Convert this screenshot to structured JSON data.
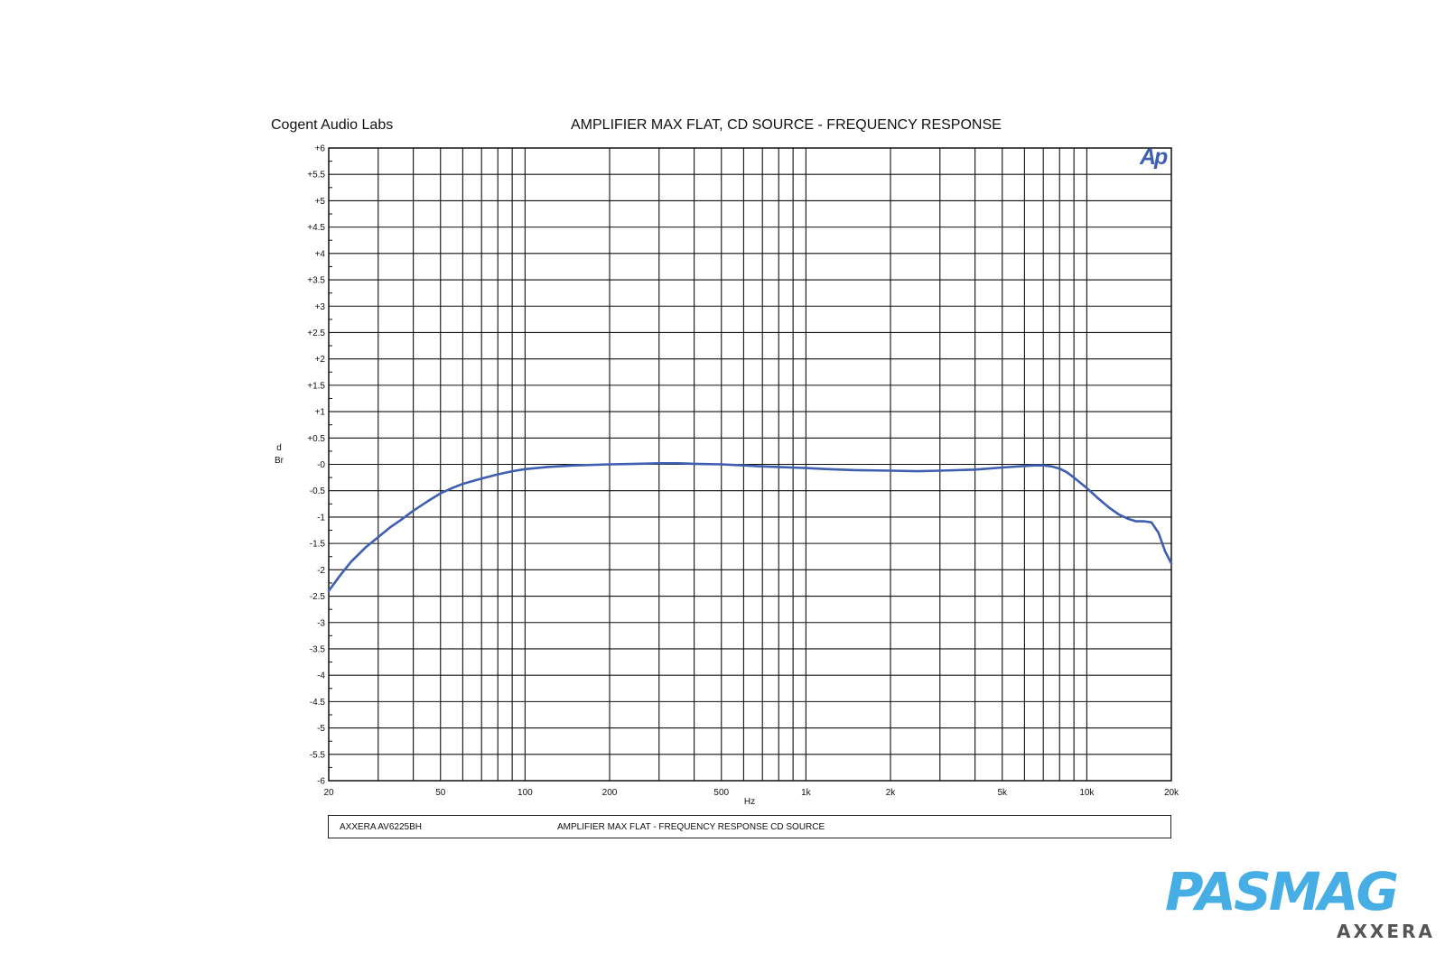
{
  "header": {
    "brand": "Cogent Audio Labs",
    "logo_text": "Ap"
  },
  "footer": {
    "left_text": "AXXERA  AV6225BH",
    "mid_text": "AMPLIFIER MAX FLAT  -  FREQUENCY RESPONSE     CD SOURCE"
  },
  "watermark": {
    "title": "PASMAG",
    "subtitle": "AXXERA"
  },
  "colors": {
    "trace": "#3f5fb0",
    "grid": "#111111",
    "watermark": "#46aee4"
  },
  "chart_data": {
    "type": "line",
    "title": "AMPLIFIER MAX FLAT, CD SOURCE  -  FREQUENCY RESPONSE",
    "xlabel": "Hz",
    "ylabel": "dBr",
    "x_scale": "log",
    "xlim": [
      20,
      20000
    ],
    "ylim": [
      -6,
      6
    ],
    "grid": true,
    "x_ticks": [
      {
        "value": 20,
        "label": "20"
      },
      {
        "value": 50,
        "label": "50"
      },
      {
        "value": 100,
        "label": "100"
      },
      {
        "value": 200,
        "label": "200"
      },
      {
        "value": 500,
        "label": "500"
      },
      {
        "value": 1000,
        "label": "1k"
      },
      {
        "value": 2000,
        "label": "2k"
      },
      {
        "value": 5000,
        "label": "5k"
      },
      {
        "value": 10000,
        "label": "10k"
      },
      {
        "value": 20000,
        "label": "20k"
      }
    ],
    "x_gridlines": [
      30,
      40,
      50,
      60,
      70,
      80,
      90,
      100,
      200,
      300,
      400,
      500,
      600,
      700,
      800,
      900,
      1000,
      2000,
      3000,
      4000,
      5000,
      6000,
      7000,
      8000,
      9000,
      10000
    ],
    "y_ticks": [
      {
        "value": 6,
        "label": "+6"
      },
      {
        "value": 5.5,
        "label": "+5.5"
      },
      {
        "value": 5,
        "label": "+5"
      },
      {
        "value": 4.5,
        "label": "+4.5"
      },
      {
        "value": 4,
        "label": "+4"
      },
      {
        "value": 3.5,
        "label": "+3.5"
      },
      {
        "value": 3,
        "label": "+3"
      },
      {
        "value": 2.5,
        "label": "+2.5"
      },
      {
        "value": 2,
        "label": "+2"
      },
      {
        "value": 1.5,
        "label": "+1.5"
      },
      {
        "value": 1,
        "label": "+1"
      },
      {
        "value": 0.5,
        "label": "+0.5"
      },
      {
        "value": 0,
        "label": "-0"
      },
      {
        "value": -0.5,
        "label": "-0.5"
      },
      {
        "value": -1,
        "label": "-1"
      },
      {
        "value": -1.5,
        "label": "-1.5"
      },
      {
        "value": -2,
        "label": "-2"
      },
      {
        "value": -2.5,
        "label": "-2.5"
      },
      {
        "value": -3,
        "label": "-3"
      },
      {
        "value": -3.5,
        "label": "-3.5"
      },
      {
        "value": -4,
        "label": "-4"
      },
      {
        "value": -4.5,
        "label": "-4.5"
      },
      {
        "value": -5,
        "label": "-5"
      },
      {
        "value": -5.5,
        "label": "-5.5"
      },
      {
        "value": -6,
        "label": "-6"
      }
    ],
    "series": [
      {
        "x": [
          20,
          22,
          24,
          27,
          30,
          33,
          36,
          40,
          45,
          50,
          55,
          60,
          70,
          80,
          90,
          100,
          120,
          150,
          200,
          250,
          300,
          350,
          400,
          500,
          600,
          700,
          800,
          1000,
          1200,
          1500,
          2000,
          2500,
          3000,
          4000,
          5000,
          6000,
          6500,
          7000,
          7500,
          8000,
          8500,
          9000,
          10000,
          11000,
          12000,
          13000,
          14000,
          15000,
          16000,
          17000,
          18000,
          19000,
          20000
        ],
        "y": [
          -2.4,
          -2.1,
          -1.85,
          -1.58,
          -1.38,
          -1.2,
          -1.06,
          -0.88,
          -0.7,
          -0.55,
          -0.45,
          -0.37,
          -0.27,
          -0.19,
          -0.13,
          -0.09,
          -0.05,
          -0.02,
          0.0,
          0.01,
          0.02,
          0.02,
          0.01,
          0.0,
          -0.02,
          -0.04,
          -0.05,
          -0.07,
          -0.09,
          -0.11,
          -0.12,
          -0.13,
          -0.12,
          -0.1,
          -0.06,
          -0.03,
          -0.02,
          -0.02,
          -0.04,
          -0.08,
          -0.15,
          -0.25,
          -0.45,
          -0.65,
          -0.82,
          -0.95,
          -1.03,
          -1.08,
          -1.08,
          -1.1,
          -1.3,
          -1.65,
          -1.88
        ]
      }
    ]
  }
}
